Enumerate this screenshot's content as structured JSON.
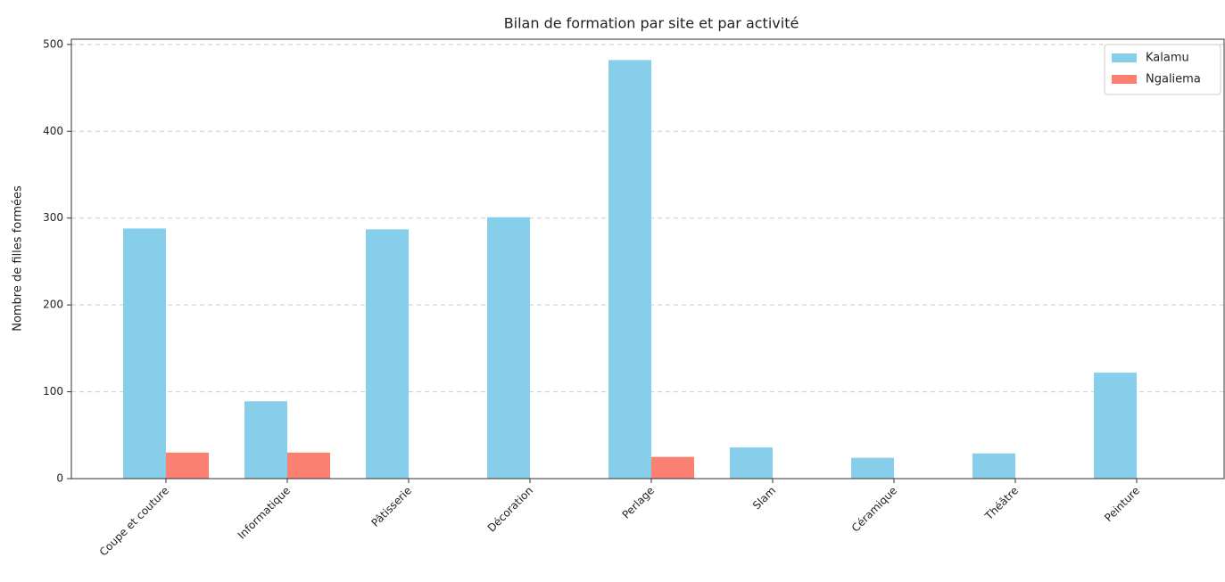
{
  "chart_data": {
    "type": "bar",
    "title": "Bilan de formation par site et par activité",
    "y_label": "Nombre de filles formées",
    "categories": [
      "Coupe et couture",
      "Informatique",
      "Pâtisserie",
      "Décoration",
      "Perlage",
      "Slam",
      "Céramique",
      "Théâtre",
      "Peinture"
    ],
    "series": [
      {
        "name": "Kalamu",
        "color": "#87ceeb",
        "values": [
          288,
          89,
          287,
          301,
          482,
          36,
          24,
          29,
          122
        ]
      },
      {
        "name": "Ngaliema",
        "color": "#fa8072",
        "values": [
          30,
          30,
          0,
          0,
          25,
          0,
          0,
          0,
          0
        ]
      }
    ],
    "ylim": [
      0,
      506
    ],
    "yticks": [
      0,
      100,
      200,
      300,
      400,
      500
    ],
    "grid": true,
    "legend": "upper right"
  }
}
